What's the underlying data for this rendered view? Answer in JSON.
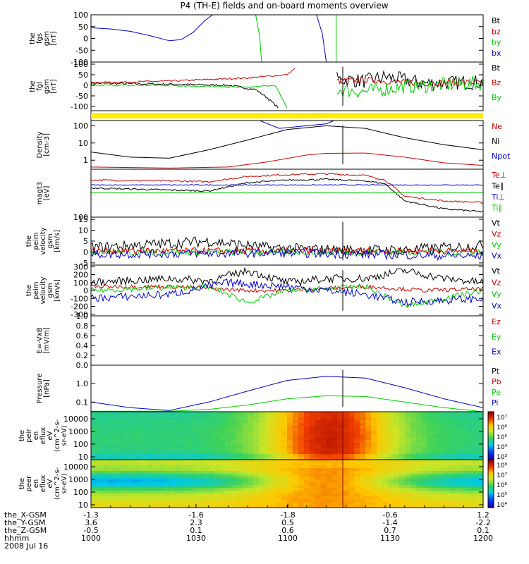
{
  "title": "P4 (TH-E) fields and on-board moments overview",
  "colors": {
    "black": "#000000",
    "red": "#cc0000",
    "green": "#00cc00",
    "blue": "#0000cc",
    "yellow": "#ffee00"
  },
  "chart_data": [
    {
      "id": "fgs",
      "type": "line",
      "ylabel": [
        "the",
        "fgs",
        "gsm",
        "[nT]"
      ],
      "yticks": [
        "100",
        "50",
        "0",
        "-50",
        "-100"
      ],
      "ylim": [
        -100,
        100
      ],
      "legend": [
        {
          "label": "Bt",
          "color": "#000000"
        },
        {
          "label": "bz",
          "color": "#cc0000"
        },
        {
          "label": "by",
          "color": "#00cc00"
        },
        {
          "label": "bx",
          "color": "#0000cc"
        }
      ],
      "series": [
        {
          "color": "#0000cc",
          "x": [
            0,
            0.05,
            0.1,
            0.15,
            0.2,
            0.23,
            0.26,
            0.29,
            0.31
          ],
          "values": [
            45,
            40,
            30,
            12,
            -10,
            -5,
            25,
            75,
            100
          ]
        },
        {
          "color": "#0000cc",
          "x": [
            0.575,
            0.59,
            0.6
          ],
          "values": [
            100,
            20,
            -100
          ]
        },
        {
          "color": "#00cc00",
          "x": [
            0.42,
            0.43,
            0.435
          ],
          "values": [
            100,
            10,
            -100
          ]
        },
        {
          "color": "#00cc00",
          "x": [
            0.625,
            0.625
          ],
          "values": [
            100,
            -100
          ]
        }
      ]
    },
    {
      "id": "fgl",
      "type": "line",
      "ylabel": [
        "the",
        "fgl",
        "gsm",
        "[nT]"
      ],
      "yticks": [
        "100",
        "50",
        "0",
        "-50",
        "-100"
      ],
      "ylim": [
        -120,
        110
      ],
      "legend": [
        {
          "label": "Bt",
          "color": "#000000"
        },
        {
          "label": "Bz",
          "color": "#cc0000"
        },
        {
          "label": "By",
          "color": "#00cc00"
        }
      ],
      "noisy": true,
      "series": [
        {
          "color": "#000000",
          "x": [
            0,
            0.2,
            0.35,
            0.42,
            0.45,
            0.48
          ],
          "values": [
            10,
            5,
            0,
            -20,
            -60,
            -110
          ],
          "noise": 5
        },
        {
          "color": "#000000",
          "x": [
            0.625,
            0.7,
            0.75,
            0.85,
            1
          ],
          "values": [
            30,
            20,
            40,
            10,
            15
          ],
          "noise": 35
        },
        {
          "color": "#cc0000",
          "x": [
            0,
            0.2,
            0.4,
            0.5,
            0.52
          ],
          "values": [
            12,
            20,
            35,
            50,
            80
          ],
          "noise": 4
        },
        {
          "color": "#cc0000",
          "x": [
            0.625,
            0.7,
            0.85,
            1
          ],
          "values": [
            20,
            25,
            10,
            15
          ],
          "noise": 15
        },
        {
          "color": "#00cc00",
          "x": [
            0,
            0.2,
            0.4,
            0.47,
            0.5
          ],
          "values": [
            0,
            0,
            -10,
            0,
            -110
          ],
          "noise": 4
        },
        {
          "color": "#00cc00",
          "x": [
            0.625,
            0.7,
            0.8,
            1
          ],
          "values": [
            -20,
            -30,
            -5,
            10
          ],
          "noise": 35
        }
      ]
    },
    {
      "id": "density",
      "type": "line",
      "log": true,
      "ylabel": [
        "Density",
        "[cm-3]"
      ],
      "yticks": [
        "100",
        "10",
        "1"
      ],
      "ylim": [
        0.3,
        200
      ],
      "legend": [
        {
          "label": "Ne",
          "color": "#cc0000"
        },
        {
          "label": "Ni",
          "color": "#000000"
        },
        {
          "label": "Npot",
          "color": "#0000cc"
        }
      ],
      "series": [
        {
          "color": "#000000",
          "x": [
            0,
            0.1,
            0.2,
            0.3,
            0.4,
            0.5,
            0.6,
            0.7,
            0.8,
            0.9,
            1
          ],
          "values": [
            3,
            1.5,
            1.3,
            4,
            15,
            60,
            100,
            70,
            20,
            8,
            4
          ]
        },
        {
          "color": "#cc0000",
          "x": [
            0,
            0.2,
            0.35,
            0.45,
            0.55,
            0.6,
            0.7,
            0.8,
            0.9,
            1
          ],
          "values": [
            0.4,
            0.35,
            0.4,
            0.8,
            2,
            2.5,
            2.6,
            1.5,
            0.7,
            0.5
          ]
        },
        {
          "color": "#0000cc",
          "x": [
            0.43,
            0.48,
            0.55,
            0.6,
            0.62
          ],
          "values": [
            200,
            70,
            100,
            130,
            200
          ]
        }
      ]
    },
    {
      "id": "temp",
      "type": "line",
      "log": true,
      "ylabel": [
        "magt3",
        "[eV]"
      ],
      "yticks": [
        "100"
      ],
      "ylim": [
        100,
        20000
      ],
      "legend": [
        {
          "label": "Te⊥",
          "color": "#cc0000"
        },
        {
          "label": "Te∥",
          "color": "#000000"
        },
        {
          "label": "Ti⊥",
          "color": "#0000cc"
        },
        {
          "label": "Ti∥",
          "color": "#00cc00"
        }
      ],
      "noisy": true,
      "series": [
        {
          "color": "#cc0000",
          "x": [
            0,
            0.2,
            0.3,
            0.4,
            0.5,
            0.6,
            0.7,
            0.75,
            0.8,
            0.9,
            1
          ],
          "values": [
            6000,
            5500,
            5000,
            9000,
            11000,
            12000,
            10000,
            6000,
            1000,
            600,
            500
          ],
          "noise": 0.04
        },
        {
          "color": "#000000",
          "x": [
            0,
            0.2,
            0.3,
            0.4,
            0.5,
            0.6,
            0.7,
            0.75,
            0.8,
            0.9,
            1
          ],
          "values": [
            2500,
            2000,
            1800,
            4500,
            6000,
            6500,
            5500,
            4000,
            600,
            250,
            180
          ],
          "noise": 0.04
        },
        {
          "color": "#0000cc",
          "x": [
            0,
            0.5,
            1
          ],
          "values": [
            3500,
            3500,
            3500
          ],
          "noise": 0.02
        },
        {
          "color": "#00cc00",
          "x": [
            0,
            0.5,
            1
          ],
          "values": [
            1500,
            1500,
            1500
          ],
          "noise": 0.02
        }
      ]
    },
    {
      "id": "peim-v",
      "type": "line",
      "ylabel": [
        "the",
        "peim",
        "velocity",
        "gsm",
        "[km/s]"
      ],
      "yticks": [
        "15",
        "10",
        "5",
        "0",
        "-5"
      ],
      "ylim": [
        -6,
        16
      ],
      "legend": [
        {
          "label": "Vt",
          "color": "#000000"
        },
        {
          "label": "Vz",
          "color": "#cc0000"
        },
        {
          "label": "Vy",
          "color": "#00cc00"
        },
        {
          "label": "Vx",
          "color": "#0000cc"
        }
      ],
      "noisy": true,
      "series": [
        {
          "color": "#000000",
          "x": [
            0,
            0.2,
            0.3,
            0.45,
            0.6,
            0.8,
            1
          ],
          "values": [
            2,
            4,
            5,
            2,
            1,
            1,
            3
          ],
          "noise": 2.5
        },
        {
          "color": "#00cc00",
          "x": [
            0,
            0.5,
            1
          ],
          "values": [
            0,
            0,
            0
          ],
          "noise": 1.5
        },
        {
          "color": "#cc0000",
          "x": [
            0,
            0.5,
            1
          ],
          "values": [
            0.5,
            0.5,
            0.5
          ],
          "noise": 1.5
        },
        {
          "color": "#0000cc",
          "x": [
            0,
            0.5,
            1
          ],
          "values": [
            -1,
            -0.5,
            -2
          ],
          "noise": 2
        }
      ]
    },
    {
      "id": "peir-v",
      "type": "line",
      "ylabel": [
        "the",
        "peim",
        "velocity",
        "gsm",
        "[km/s]"
      ],
      "yticks": [
        "300",
        "200",
        "100",
        "0",
        "-100",
        "-200",
        "-300"
      ],
      "ylim": [
        -320,
        320
      ],
      "legend": [
        {
          "label": "Vt",
          "color": "#000000"
        },
        {
          "label": "Vz",
          "color": "#cc0000"
        },
        {
          "label": "Vy",
          "color": "#00cc00"
        },
        {
          "label": "Vx",
          "color": "#0000cc"
        }
      ],
      "noisy": true,
      "series": [
        {
          "color": "#000000",
          "x": [
            0,
            0.2,
            0.3,
            0.4,
            0.5,
            0.6,
            0.7,
            0.8,
            0.9,
            1
          ],
          "values": [
            100,
            150,
            120,
            250,
            100,
            150,
            150,
            250,
            150,
            100
          ],
          "noise": 50
        },
        {
          "color": "#cc0000",
          "x": [
            0,
            0.2,
            0.4,
            0.5,
            0.7,
            0.85,
            1
          ],
          "values": [
            50,
            50,
            0,
            0,
            50,
            0,
            20
          ],
          "noise": 25
        },
        {
          "color": "#00cc00",
          "x": [
            0,
            0.3,
            0.4,
            0.5,
            0.7,
            0.8,
            1
          ],
          "values": [
            0,
            50,
            -150,
            0,
            50,
            -200,
            0
          ],
          "noise": 35
        },
        {
          "color": "#0000cc",
          "x": [
            0,
            0.2,
            0.35,
            0.5,
            0.7,
            0.8,
            1
          ],
          "values": [
            -100,
            -50,
            100,
            50,
            -50,
            -150,
            -100
          ],
          "noise": 50
        }
      ]
    },
    {
      "id": "efield",
      "type": "line",
      "ylabel": [
        "E=-VxB",
        "[mV/m]"
      ],
      "yticks": [
        "1.0",
        "0.8",
        "0.6",
        "0.4",
        "0.2",
        "0.0"
      ],
      "ylim": [
        0,
        1
      ],
      "legend": [
        {
          "label": "Ez",
          "color": "#cc0000"
        },
        {
          "label": "Ey",
          "color": "#00cc00"
        },
        {
          "label": "Ex",
          "color": "#0000cc"
        }
      ],
      "series": []
    },
    {
      "id": "pressure",
      "type": "line",
      "log": true,
      "ylabel": [
        "Pressure",
        "[nPa]"
      ],
      "yticks": [
        "1.0",
        "0.1"
      ],
      "ylim": [
        0.03,
        10
      ],
      "legend": [
        {
          "label": "Pt",
          "color": "#000000"
        },
        {
          "label": "Pb",
          "color": "#cc0000"
        },
        {
          "label": "Pe",
          "color": "#00cc00"
        },
        {
          "label": "Pi",
          "color": "#0000cc"
        }
      ],
      "series": [
        {
          "color": "#0000cc",
          "x": [
            0,
            0.1,
            0.2,
            0.3,
            0.4,
            0.5,
            0.6,
            0.7,
            0.8,
            0.9,
            1
          ],
          "values": [
            0.1,
            0.05,
            0.035,
            0.1,
            0.4,
            1.5,
            2.5,
            2,
            0.6,
            0.15,
            0.05
          ]
        },
        {
          "color": "#00cc00",
          "x": [
            0,
            0.2,
            0.3,
            0.4,
            0.5,
            0.6,
            0.7,
            0.8,
            0.9,
            1
          ],
          "values": [
            0.032,
            0.032,
            0.04,
            0.07,
            0.15,
            0.22,
            0.2,
            0.1,
            0.05,
            0.03
          ]
        }
      ]
    },
    {
      "id": "ion-flux",
      "type": "heatmap",
      "ylabel": [
        "the",
        "peir",
        "en",
        "eflux",
        "eV",
        "(cm^2-s-",
        "sr-eV)"
      ],
      "yticks": [
        "10000",
        "1000",
        "100",
        "10"
      ],
      "colorbar_ticks": [
        "10⁷",
        "10⁶",
        "10⁵",
        "10⁴",
        "10³"
      ],
      "profile": "ion"
    },
    {
      "id": "electron-flux",
      "type": "heatmap",
      "ylabel": [
        "the",
        "peer",
        "en",
        "eflux",
        "eV",
        "(cm^2-s-",
        "sr-eV)"
      ],
      "yticks": [
        "10000",
        "1000",
        "100",
        "10"
      ],
      "colorbar_ticks": [
        "10⁸",
        "10⁷",
        "10⁶",
        "10⁵",
        "10⁴"
      ],
      "profile": "electron"
    }
  ],
  "x_axis": {
    "rows": [
      {
        "label": "the_X-GSM",
        "values": [
          "-1.3",
          "-1.6",
          "-1.8",
          "-0.6",
          "1.2"
        ]
      },
      {
        "label": "the_Y-GSM",
        "values": [
          "3.6",
          "2.3",
          "0.5",
          "-1.4",
          "-2.2"
        ]
      },
      {
        "label": "the_Z-GSM",
        "values": [
          "-0.5",
          "0.1",
          "0.6",
          "0.7",
          "0.1"
        ]
      },
      {
        "label": "hhmm",
        "values": [
          "1000",
          "1030",
          "1100",
          "1130",
          "1200"
        ]
      }
    ],
    "date": "2008 Jul 16"
  }
}
